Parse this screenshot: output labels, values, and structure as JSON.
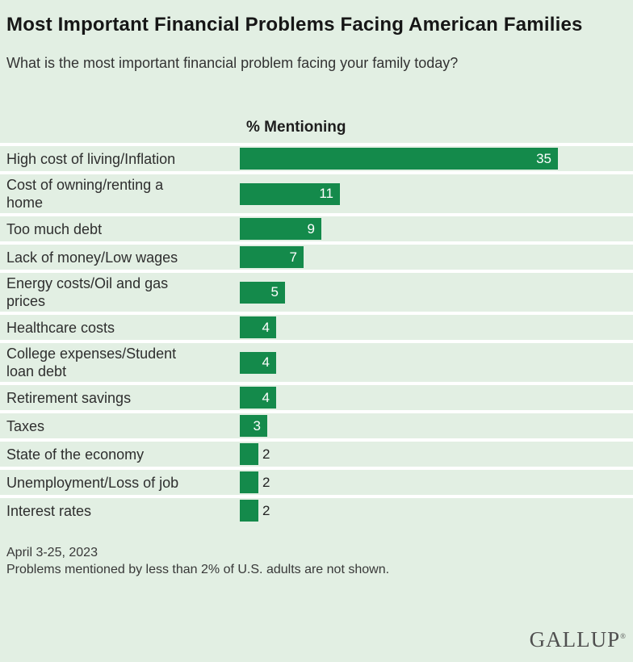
{
  "header": {
    "title": "Most Important Financial Problems Facing American Families",
    "question": "What is the most important financial problem facing your family today?"
  },
  "chart_data": {
    "type": "bar",
    "orientation": "horizontal",
    "title": "Most Important Financial Problems Facing American Families",
    "subtitle": "What is the most important financial problem facing your family today?",
    "value_header": "% Mentioning",
    "unit": "% of U.S. adults mentioning",
    "categories": [
      "High cost of living/Inflation",
      "Cost of owning/renting a home",
      "Too much debt",
      "Lack of money/Low wages",
      "Energy costs/Oil and gas prices",
      "Healthcare costs",
      "College expenses/Student loan debt",
      "Retirement savings",
      "Taxes",
      "State of the economy",
      "Unemployment/Loss of job",
      "Interest rates"
    ],
    "values": [
      35,
      11,
      9,
      7,
      5,
      4,
      4,
      4,
      3,
      2,
      2,
      2
    ],
    "rows": [
      {
        "label": "High cost of living/Inflation",
        "value": 35,
        "value_inside": true
      },
      {
        "label": "Cost of owning/renting a\nhome",
        "value": 11,
        "value_inside": true
      },
      {
        "label": "Too much debt",
        "value": 9,
        "value_inside": true
      },
      {
        "label": "Lack of money/Low wages",
        "value": 7,
        "value_inside": true
      },
      {
        "label": "Energy costs/Oil and gas\nprices",
        "value": 5,
        "value_inside": true
      },
      {
        "label": "Healthcare costs",
        "value": 4,
        "value_inside": true
      },
      {
        "label": "College expenses/Student\nloan debt",
        "value": 4,
        "value_inside": true
      },
      {
        "label": "Retirement savings",
        "value": 4,
        "value_inside": true
      },
      {
        "label": "Taxes",
        "value": 3,
        "value_inside": true
      },
      {
        "label": "State of the economy",
        "value": 2,
        "value_inside": false
      },
      {
        "label": "Unemployment/Loss of job",
        "value": 2,
        "value_inside": false
      },
      {
        "label": "Interest rates",
        "value": 2,
        "value_inside": false
      }
    ],
    "colors": {
      "bar": "#148a4b",
      "background": "#e2efe3",
      "divider": "#ffffff",
      "value_inside_text": "#ffffff",
      "value_outside_text": "#222222"
    },
    "legend": "none",
    "grid": "off"
  },
  "footer": {
    "date": "April 3-25, 2023",
    "note": "Problems mentioned by less than 2% of U.S. adults are not shown.",
    "brand": "GALLUP"
  }
}
